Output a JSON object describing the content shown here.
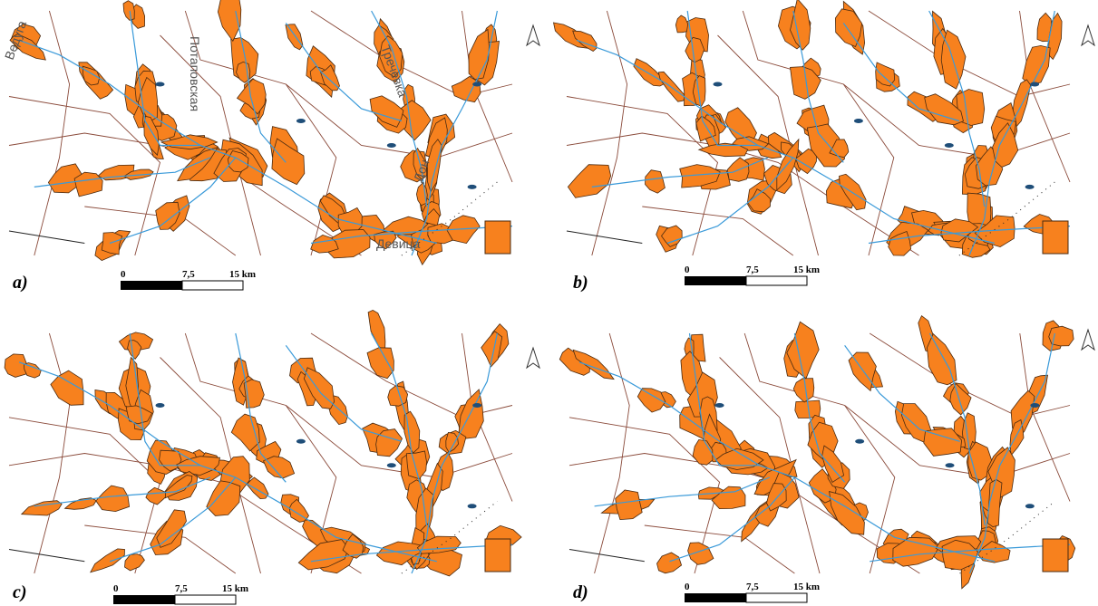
{
  "panels": [
    {
      "label": "a)",
      "scale": [
        "0",
        "7,5",
        "15 km"
      ],
      "rivers": [
        "Потаповская",
        "Тречевка",
        "Дон",
        "Девица",
        "Ведуга"
      ]
    },
    {
      "label": "b)",
      "scale": [
        "0",
        "7,5",
        "15 km"
      ]
    },
    {
      "label": "c)",
      "scale": [
        "0",
        "7,5",
        "15 km"
      ]
    },
    {
      "label": "d)",
      "scale": [
        "0",
        "7,5",
        "15 km"
      ]
    }
  ]
}
